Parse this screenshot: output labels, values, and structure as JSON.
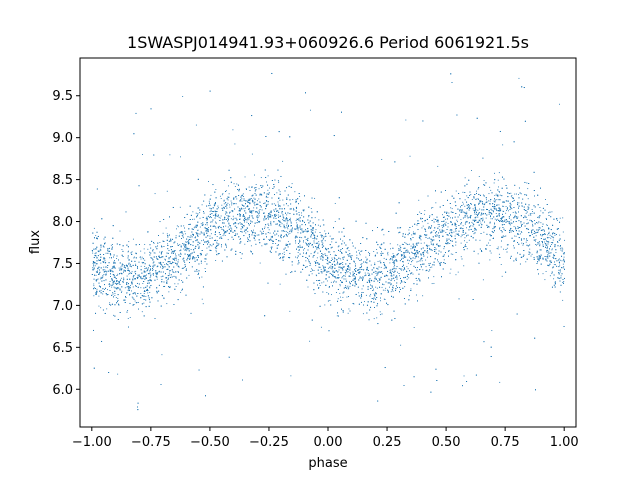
{
  "chart_data": {
    "type": "scatter",
    "title": "1SWASPJ014941.93+060926.6 Period 6061921.5s",
    "xlabel": "phase",
    "ylabel": "flux",
    "xlim": [
      -1.05,
      1.05
    ],
    "ylim": [
      5.55,
      9.95
    ],
    "x_ticks": [
      -1.0,
      -0.75,
      -0.5,
      -0.25,
      0.0,
      0.25,
      0.5,
      0.75,
      1.0
    ],
    "x_tick_labels": [
      "−1.00",
      "−0.75",
      "−0.50",
      "−0.25",
      "0.00",
      "0.25",
      "0.50",
      "0.75",
      "1.00"
    ],
    "y_ticks": [
      6.0,
      6.5,
      7.0,
      7.5,
      8.0,
      8.5,
      9.0,
      9.5
    ],
    "y_tick_labels": [
      "6.0",
      "6.5",
      "7.0",
      "7.5",
      "8.0",
      "8.5",
      "9.0",
      "9.5"
    ],
    "point_color": "#1f77b4",
    "grid": false,
    "series": [
      {
        "trend": {
          "x": [
            -1.0,
            -0.9,
            -0.8,
            -0.7,
            -0.6,
            -0.5,
            -0.4,
            -0.3,
            -0.2,
            -0.1,
            0.0,
            0.1,
            0.2,
            0.3,
            0.4,
            0.5,
            0.6,
            0.7,
            0.8,
            0.9,
            1.0
          ],
          "y": [
            7.5,
            7.35,
            7.3,
            7.5,
            7.7,
            7.9,
            8.05,
            8.1,
            8.0,
            7.8,
            7.5,
            7.35,
            7.3,
            7.5,
            7.7,
            7.9,
            8.05,
            8.1,
            8.0,
            7.8,
            7.5
          ]
        },
        "scatter_spread": 0.22,
        "n_points": 9000
      }
    ]
  }
}
